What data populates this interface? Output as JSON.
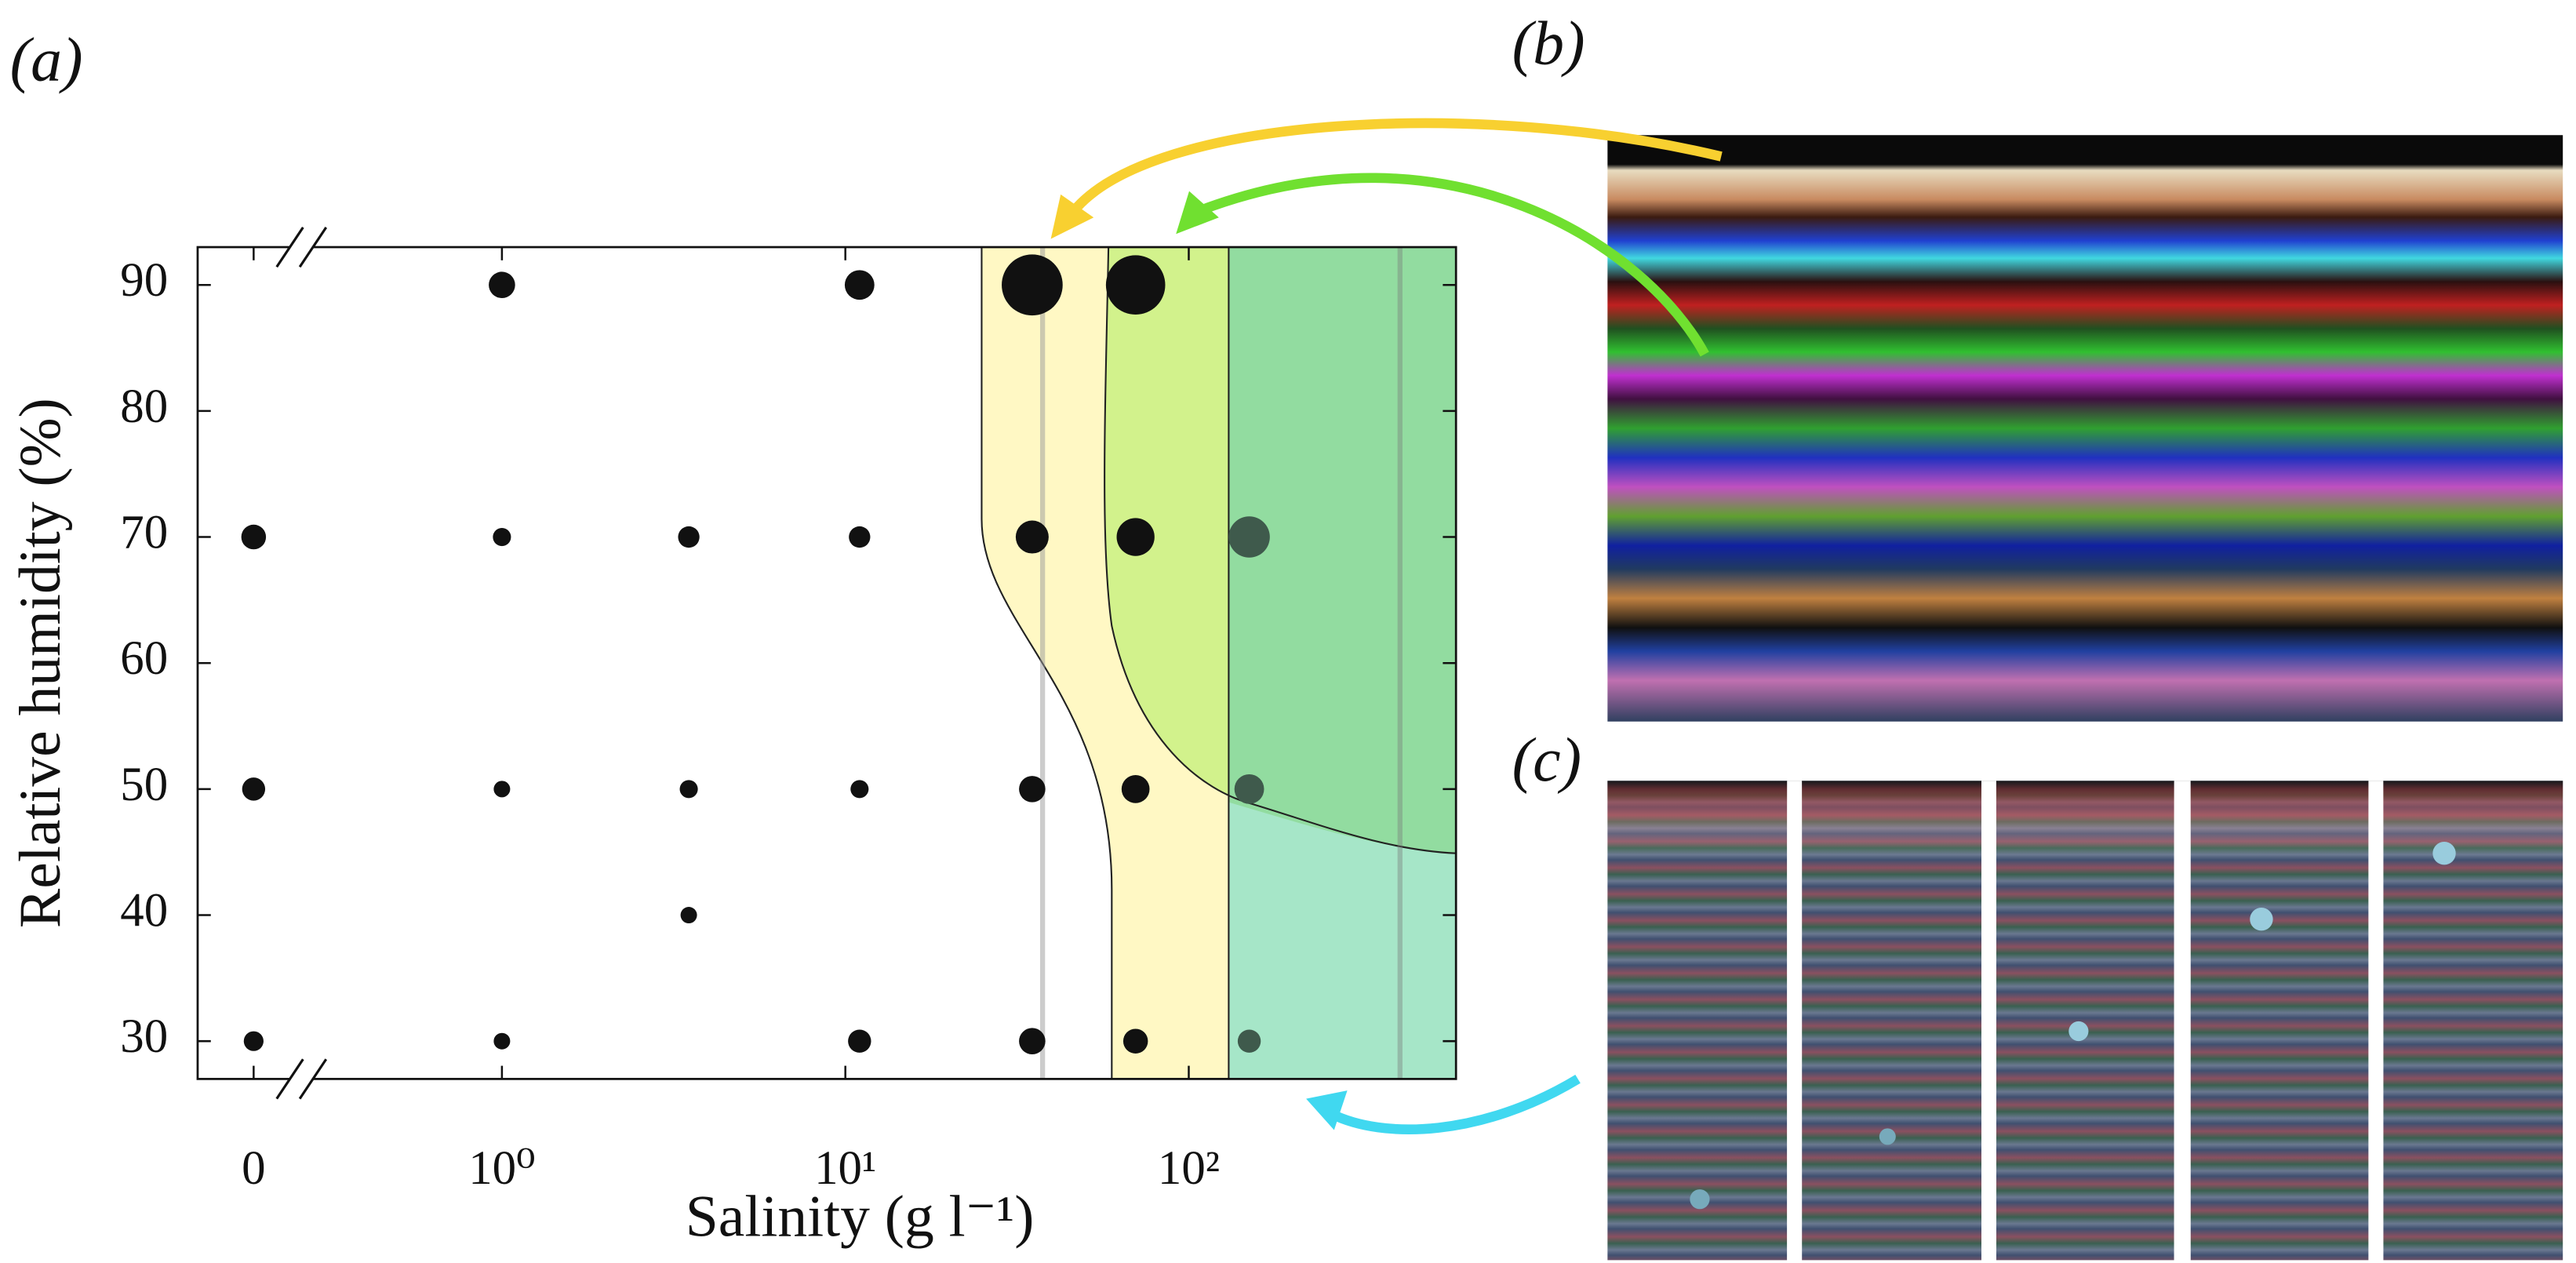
{
  "panels": [
    "(a)",
    "(b)",
    "(c)"
  ],
  "chart_data": {
    "type": "scatter",
    "xlabel": "Salinity (g l⁻¹)",
    "ylabel": "Relative humidity (%)",
    "log_x": true,
    "xlim": [
      0.13,
      600
    ],
    "ylim": [
      27,
      93
    ],
    "xticks": [
      0,
      {
        "value": 1,
        "label": "10⁰"
      },
      {
        "value": 10,
        "label": "10¹"
      },
      {
        "value": 100,
        "label": "10²"
      }
    ],
    "yticks": [
      30,
      40,
      50,
      60,
      70,
      80,
      90
    ],
    "x": [
      1,
      11,
      35,
      70,
      0,
      1,
      3.5,
      11,
      35,
      70,
      150,
      0,
      1,
      3.5,
      11,
      35,
      70,
      150,
      3.5,
      0,
      1,
      11,
      35,
      70,
      150
    ],
    "values": [
      90,
      90,
      90,
      90,
      70,
      70,
      70,
      70,
      70,
      70,
      70,
      50,
      50,
      50,
      50,
      50,
      50,
      50,
      40,
      30,
      30,
      30,
      30,
      30,
      30
    ],
    "sizes": [
      8,
      9,
      18.5,
      18,
      7.5,
      5.5,
      6.5,
      6.5,
      10,
      11.5,
      12.5,
      7,
      5,
      5.5,
      5.5,
      8,
      8.5,
      9,
      5,
      6,
      5,
      7,
      8,
      7.5,
      7
    ],
    "colors": [
      "#111",
      "#111",
      "#111",
      "#111",
      "#111",
      "#111",
      "#111",
      "#111",
      "#111",
      "#111",
      "#3f5a4c",
      "#111",
      "#111",
      "#111",
      "#111",
      "#111",
      "#111",
      "#3f5a4c",
      "#111",
      "#111",
      "#111",
      "#111",
      "#111",
      "#111",
      "#3f5a4c"
    ]
  }
}
